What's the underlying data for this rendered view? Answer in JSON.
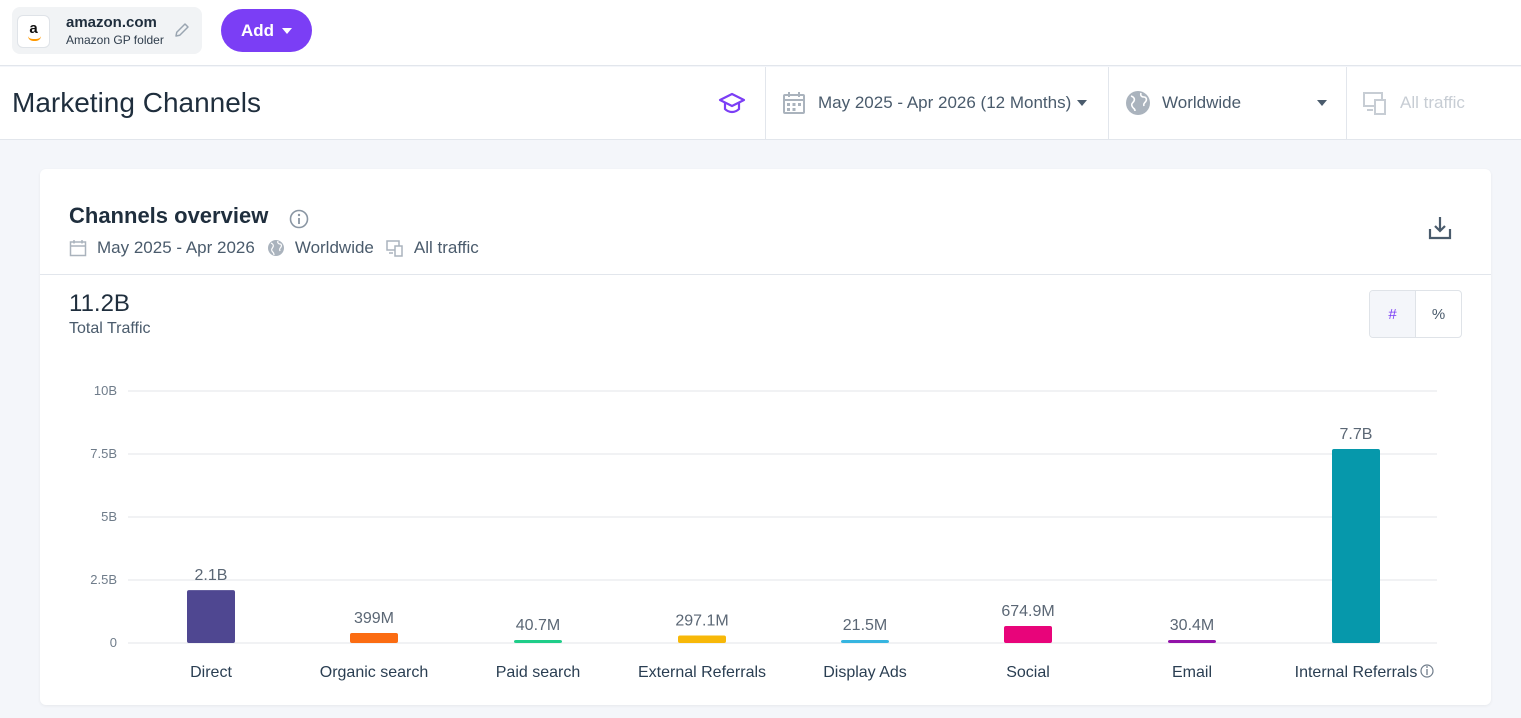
{
  "topbar": {
    "site_name": "amazon.com",
    "site_folder": "Amazon GP folder",
    "logo_letter": "a",
    "add_label": "Add"
  },
  "header": {
    "title": "Marketing Channels",
    "date_filter": "May 2025 - Apr 2026 (12 Months)",
    "country_filter": "Worldwide",
    "traffic_filter": "All traffic"
  },
  "card": {
    "title": "Channels overview",
    "date": "May 2025 - Apr 2026",
    "country": "Worldwide",
    "traffic": "All traffic",
    "total_value": "11.2B",
    "total_label": "Total Traffic",
    "toggle_count": "#",
    "toggle_percent": "%"
  },
  "colors": {
    "accent": "#7b3ef5",
    "direct": "#4f4791",
    "organic": "#fb6c12",
    "paid": "#1fcd89",
    "external": "#f7b809",
    "display": "#36b5e0",
    "social": "#e8047a",
    "email": "#9212a8",
    "internal": "#0698ab"
  },
  "chart_data": {
    "type": "bar",
    "categories": [
      "Direct",
      "Organic search",
      "Paid search",
      "External Referrals",
      "Display Ads",
      "Social",
      "Email",
      "Internal Referrals"
    ],
    "values": [
      2.1,
      0.399,
      0.0407,
      0.2971,
      0.0215,
      0.6749,
      0.0304,
      7.7
    ],
    "value_labels": [
      "2.1B",
      "399M",
      "40.7M",
      "297.1M",
      "21.5M",
      "674.9M",
      "30.4M",
      "7.7B"
    ],
    "colors": [
      "#4f4791",
      "#fb6c12",
      "#1fcd89",
      "#f7b809",
      "#36b5e0",
      "#e8047a",
      "#9212a8",
      "#0698ab"
    ],
    "yticks": [
      0,
      2.5,
      5,
      7.5,
      10
    ],
    "ytick_labels": [
      "0",
      "2.5B",
      "5B",
      "7.5B",
      "10B"
    ],
    "ylim": [
      0,
      10
    ],
    "grid": true
  }
}
